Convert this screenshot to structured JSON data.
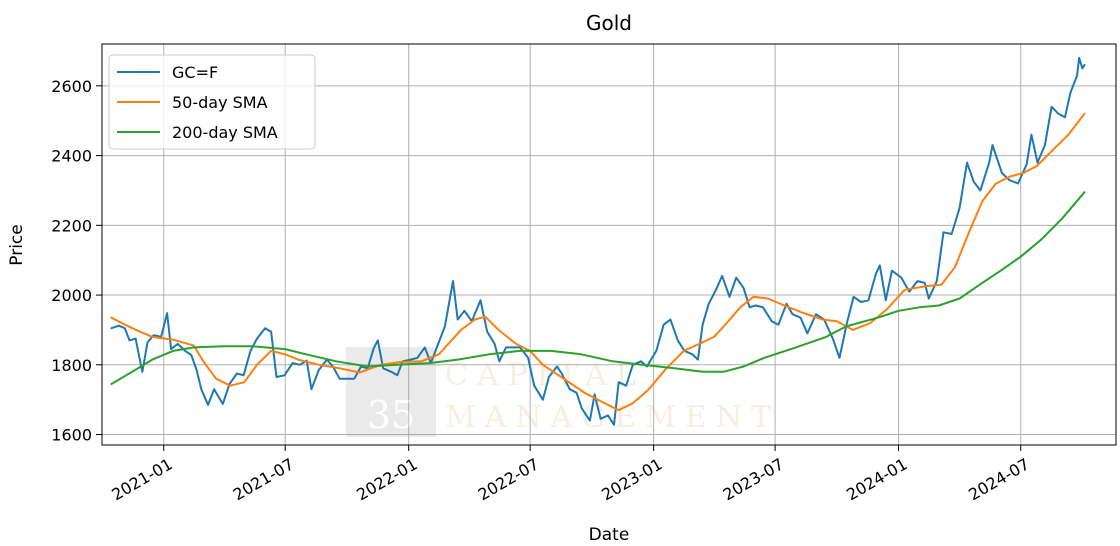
{
  "chart_data": {
    "type": "line",
    "title": "Gold",
    "xlabel": "Date",
    "ylabel": "Price",
    "x_range": [
      "2020-10-01",
      "2024-11-20"
    ],
    "ylim": [
      1570,
      2720
    ],
    "grid": true,
    "legend_position": "top-left",
    "x_ticks": [
      "2021-01",
      "2021-07",
      "2022-01",
      "2022-07",
      "2023-01",
      "2023-07",
      "2024-01",
      "2024-07"
    ],
    "y_ticks": [
      1600,
      1800,
      2000,
      2200,
      2400,
      2600
    ],
    "series": [
      {
        "name": "GC=F",
        "color": "#1f77b4",
        "points": [
          [
            "2020-10-15",
            1905
          ],
          [
            "2020-10-26",
            1912
          ],
          [
            "2020-11-04",
            1905
          ],
          [
            "2020-11-11",
            1870
          ],
          [
            "2020-11-20",
            1875
          ],
          [
            "2020-11-30",
            1780
          ],
          [
            "2020-12-08",
            1865
          ],
          [
            "2020-12-17",
            1885
          ],
          [
            "2020-12-28",
            1880
          ],
          [
            "2021-01-06",
            1948
          ],
          [
            "2021-01-12",
            1845
          ],
          [
            "2021-01-22",
            1860
          ],
          [
            "2021-02-02",
            1840
          ],
          [
            "2021-02-11",
            1828
          ],
          [
            "2021-02-19",
            1785
          ],
          [
            "2021-02-26",
            1730
          ],
          [
            "2021-03-08",
            1685
          ],
          [
            "2021-03-17",
            1730
          ],
          [
            "2021-03-30",
            1688
          ],
          [
            "2021-04-09",
            1745
          ],
          [
            "2021-04-20",
            1775
          ],
          [
            "2021-04-30",
            1770
          ],
          [
            "2021-05-10",
            1838
          ],
          [
            "2021-05-20",
            1875
          ],
          [
            "2021-06-01",
            1905
          ],
          [
            "2021-06-10",
            1895
          ],
          [
            "2021-06-18",
            1765
          ],
          [
            "2021-06-30",
            1770
          ],
          [
            "2021-07-12",
            1805
          ],
          [
            "2021-07-23",
            1800
          ],
          [
            "2021-08-02",
            1812
          ],
          [
            "2021-08-09",
            1730
          ],
          [
            "2021-08-20",
            1785
          ],
          [
            "2021-09-01",
            1815
          ],
          [
            "2021-09-10",
            1795
          ],
          [
            "2021-09-20",
            1760
          ],
          [
            "2021-09-30",
            1760
          ],
          [
            "2021-10-12",
            1760
          ],
          [
            "2021-10-22",
            1795
          ],
          [
            "2021-11-01",
            1790
          ],
          [
            "2021-11-10",
            1848
          ],
          [
            "2021-11-16",
            1870
          ],
          [
            "2021-11-24",
            1790
          ],
          [
            "2021-12-06",
            1780
          ],
          [
            "2021-12-15",
            1770
          ],
          [
            "2021-12-23",
            1810
          ],
          [
            "2022-01-04",
            1815
          ],
          [
            "2022-01-14",
            1820
          ],
          [
            "2022-01-25",
            1850
          ],
          [
            "2022-02-03",
            1805
          ],
          [
            "2022-02-14",
            1860
          ],
          [
            "2022-02-24",
            1910
          ],
          [
            "2022-03-08",
            2040
          ],
          [
            "2022-03-15",
            1930
          ],
          [
            "2022-03-25",
            1955
          ],
          [
            "2022-04-05",
            1925
          ],
          [
            "2022-04-18",
            1985
          ],
          [
            "2022-04-28",
            1895
          ],
          [
            "2022-05-09",
            1860
          ],
          [
            "2022-05-16",
            1810
          ],
          [
            "2022-05-26",
            1850
          ],
          [
            "2022-06-06",
            1850
          ],
          [
            "2022-06-16",
            1850
          ],
          [
            "2022-06-28",
            1820
          ],
          [
            "2022-07-07",
            1740
          ],
          [
            "2022-07-20",
            1700
          ],
          [
            "2022-07-29",
            1765
          ],
          [
            "2022-08-10",
            1795
          ],
          [
            "2022-08-17",
            1775
          ],
          [
            "2022-08-29",
            1730
          ],
          [
            "2022-09-08",
            1720
          ],
          [
            "2022-09-16",
            1675
          ],
          [
            "2022-09-28",
            1640
          ],
          [
            "2022-10-05",
            1715
          ],
          [
            "2022-10-14",
            1645
          ],
          [
            "2022-10-25",
            1655
          ],
          [
            "2022-11-03",
            1628
          ],
          [
            "2022-11-10",
            1750
          ],
          [
            "2022-11-21",
            1740
          ],
          [
            "2022-12-01",
            1800
          ],
          [
            "2022-12-13",
            1810
          ],
          [
            "2022-12-22",
            1795
          ],
          [
            "2023-01-05",
            1840
          ],
          [
            "2023-01-16",
            1915
          ],
          [
            "2023-01-26",
            1930
          ],
          [
            "2023-02-06",
            1870
          ],
          [
            "2023-02-16",
            1840
          ],
          [
            "2023-02-28",
            1830
          ],
          [
            "2023-03-08",
            1815
          ],
          [
            "2023-03-15",
            1915
          ],
          [
            "2023-03-24",
            1975
          ],
          [
            "2023-04-04",
            2015
          ],
          [
            "2023-04-13",
            2055
          ],
          [
            "2023-04-24",
            1995
          ],
          [
            "2023-05-04",
            2050
          ],
          [
            "2023-05-15",
            2020
          ],
          [
            "2023-05-24",
            1965
          ],
          [
            "2023-06-02",
            1970
          ],
          [
            "2023-06-13",
            1965
          ],
          [
            "2023-06-26",
            1925
          ],
          [
            "2023-07-06",
            1915
          ],
          [
            "2023-07-18",
            1975
          ],
          [
            "2023-07-27",
            1945
          ],
          [
            "2023-08-08",
            1935
          ],
          [
            "2023-08-18",
            1890
          ],
          [
            "2023-08-31",
            1945
          ],
          [
            "2023-09-12",
            1930
          ],
          [
            "2023-09-25",
            1875
          ],
          [
            "2023-10-05",
            1820
          ],
          [
            "2023-10-16",
            1920
          ],
          [
            "2023-10-26",
            1995
          ],
          [
            "2023-11-06",
            1980
          ],
          [
            "2023-11-17",
            1985
          ],
          [
            "2023-11-28",
            2060
          ],
          [
            "2023-12-04",
            2085
          ],
          [
            "2023-12-13",
            1985
          ],
          [
            "2023-12-22",
            2070
          ],
          [
            "2024-01-05",
            2050
          ],
          [
            "2024-01-17",
            2010
          ],
          [
            "2024-01-29",
            2040
          ],
          [
            "2024-02-09",
            2035
          ],
          [
            "2024-02-15",
            1990
          ],
          [
            "2024-02-27",
            2040
          ],
          [
            "2024-03-08",
            2180
          ],
          [
            "2024-03-20",
            2175
          ],
          [
            "2024-04-01",
            2250
          ],
          [
            "2024-04-12",
            2380
          ],
          [
            "2024-04-22",
            2325
          ],
          [
            "2024-05-02",
            2300
          ],
          [
            "2024-05-15",
            2380
          ],
          [
            "2024-05-20",
            2430
          ],
          [
            "2024-06-03",
            2350
          ],
          [
            "2024-06-14",
            2330
          ],
          [
            "2024-06-27",
            2320
          ],
          [
            "2024-07-10",
            2375
          ],
          [
            "2024-07-17",
            2460
          ],
          [
            "2024-07-26",
            2380
          ],
          [
            "2024-08-06",
            2430
          ],
          [
            "2024-08-16",
            2540
          ],
          [
            "2024-08-26",
            2520
          ],
          [
            "2024-09-05",
            2510
          ],
          [
            "2024-09-13",
            2580
          ],
          [
            "2024-09-23",
            2630
          ],
          [
            "2024-09-26",
            2680
          ],
          [
            "2024-10-01",
            2650
          ],
          [
            "2024-10-04",
            2660
          ]
        ]
      },
      {
        "name": "50-day SMA",
        "color": "#ff7f0e",
        "points": [
          [
            "2020-10-15",
            1935
          ],
          [
            "2020-11-15",
            1905
          ],
          [
            "2020-12-15",
            1880
          ],
          [
            "2021-01-15",
            1872
          ],
          [
            "2021-02-15",
            1855
          ],
          [
            "2021-03-01",
            1810
          ],
          [
            "2021-03-20",
            1760
          ],
          [
            "2021-04-10",
            1740
          ],
          [
            "2021-05-01",
            1750
          ],
          [
            "2021-05-20",
            1800
          ],
          [
            "2021-06-10",
            1840
          ],
          [
            "2021-07-01",
            1830
          ],
          [
            "2021-07-20",
            1815
          ],
          [
            "2021-08-20",
            1800
          ],
          [
            "2021-09-20",
            1790
          ],
          [
            "2021-10-20",
            1778
          ],
          [
            "2021-11-20",
            1800
          ],
          [
            "2021-12-20",
            1808
          ],
          [
            "2022-01-20",
            1810
          ],
          [
            "2022-02-15",
            1830
          ],
          [
            "2022-03-01",
            1860
          ],
          [
            "2022-03-20",
            1900
          ],
          [
            "2022-04-10",
            1930
          ],
          [
            "2022-04-25",
            1938
          ],
          [
            "2022-05-15",
            1900
          ],
          [
            "2022-06-10",
            1860
          ],
          [
            "2022-07-01",
            1840
          ],
          [
            "2022-07-20",
            1800
          ],
          [
            "2022-08-20",
            1760
          ],
          [
            "2022-09-20",
            1720
          ],
          [
            "2022-10-20",
            1690
          ],
          [
            "2022-11-10",
            1670
          ],
          [
            "2022-12-01",
            1690
          ],
          [
            "2022-12-25",
            1730
          ],
          [
            "2023-01-20",
            1790
          ],
          [
            "2023-02-15",
            1840
          ],
          [
            "2023-03-10",
            1860
          ],
          [
            "2023-04-01",
            1880
          ],
          [
            "2023-04-20",
            1920
          ],
          [
            "2023-05-10",
            1965
          ],
          [
            "2023-05-30",
            1995
          ],
          [
            "2023-06-20",
            1990
          ],
          [
            "2023-07-15",
            1970
          ],
          [
            "2023-08-10",
            1950
          ],
          [
            "2023-09-10",
            1930
          ],
          [
            "2023-10-01",
            1925
          ],
          [
            "2023-10-25",
            1900
          ],
          [
            "2023-11-20",
            1920
          ],
          [
            "2023-12-15",
            1960
          ],
          [
            "2024-01-10",
            2015
          ],
          [
            "2024-02-10",
            2025
          ],
          [
            "2024-03-05",
            2030
          ],
          [
            "2024-03-25",
            2080
          ],
          [
            "2024-04-15",
            2180
          ],
          [
            "2024-05-05",
            2270
          ],
          [
            "2024-05-25",
            2320
          ],
          [
            "2024-06-15",
            2340
          ],
          [
            "2024-07-05",
            2350
          ],
          [
            "2024-07-25",
            2370
          ],
          [
            "2024-08-20",
            2420
          ],
          [
            "2024-09-10",
            2460
          ],
          [
            "2024-10-04",
            2520
          ]
        ]
      },
      {
        "name": "200-day SMA",
        "color": "#2ca02c",
        "points": [
          [
            "2020-10-15",
            1745
          ],
          [
            "2020-11-15",
            1780
          ],
          [
            "2020-12-15",
            1815
          ],
          [
            "2021-01-15",
            1840
          ],
          [
            "2021-02-15",
            1850
          ],
          [
            "2021-04-01",
            1853
          ],
          [
            "2021-05-15",
            1853
          ],
          [
            "2021-07-01",
            1845
          ],
          [
            "2021-08-01",
            1830
          ],
          [
            "2021-09-15",
            1810
          ],
          [
            "2021-11-01",
            1795
          ],
          [
            "2021-12-15",
            1800
          ],
          [
            "2022-02-01",
            1805
          ],
          [
            "2022-03-15",
            1815
          ],
          [
            "2022-05-01",
            1830
          ],
          [
            "2022-06-15",
            1840
          ],
          [
            "2022-08-01",
            1840
          ],
          [
            "2022-09-15",
            1830
          ],
          [
            "2022-11-01",
            1810
          ],
          [
            "2022-12-15",
            1800
          ],
          [
            "2023-02-01",
            1790
          ],
          [
            "2023-03-15",
            1780
          ],
          [
            "2023-04-15",
            1780
          ],
          [
            "2023-05-15",
            1795
          ],
          [
            "2023-06-15",
            1820
          ],
          [
            "2023-08-01",
            1850
          ],
          [
            "2023-09-15",
            1880
          ],
          [
            "2023-10-15",
            1910
          ],
          [
            "2023-12-01",
            1935
          ],
          [
            "2024-01-01",
            1955
          ],
          [
            "2024-02-01",
            1965
          ],
          [
            "2024-03-01",
            1970
          ],
          [
            "2024-04-01",
            1990
          ],
          [
            "2024-05-01",
            2030
          ],
          [
            "2024-06-01",
            2070
          ],
          [
            "2024-07-01",
            2110
          ],
          [
            "2024-08-01",
            2160
          ],
          [
            "2024-09-01",
            2220
          ],
          [
            "2024-10-04",
            2295
          ]
        ]
      }
    ]
  },
  "watermark": {
    "logo_digits": "35",
    "company_line1": "CAPITAL",
    "company_line2": "MANAGEMENT"
  }
}
